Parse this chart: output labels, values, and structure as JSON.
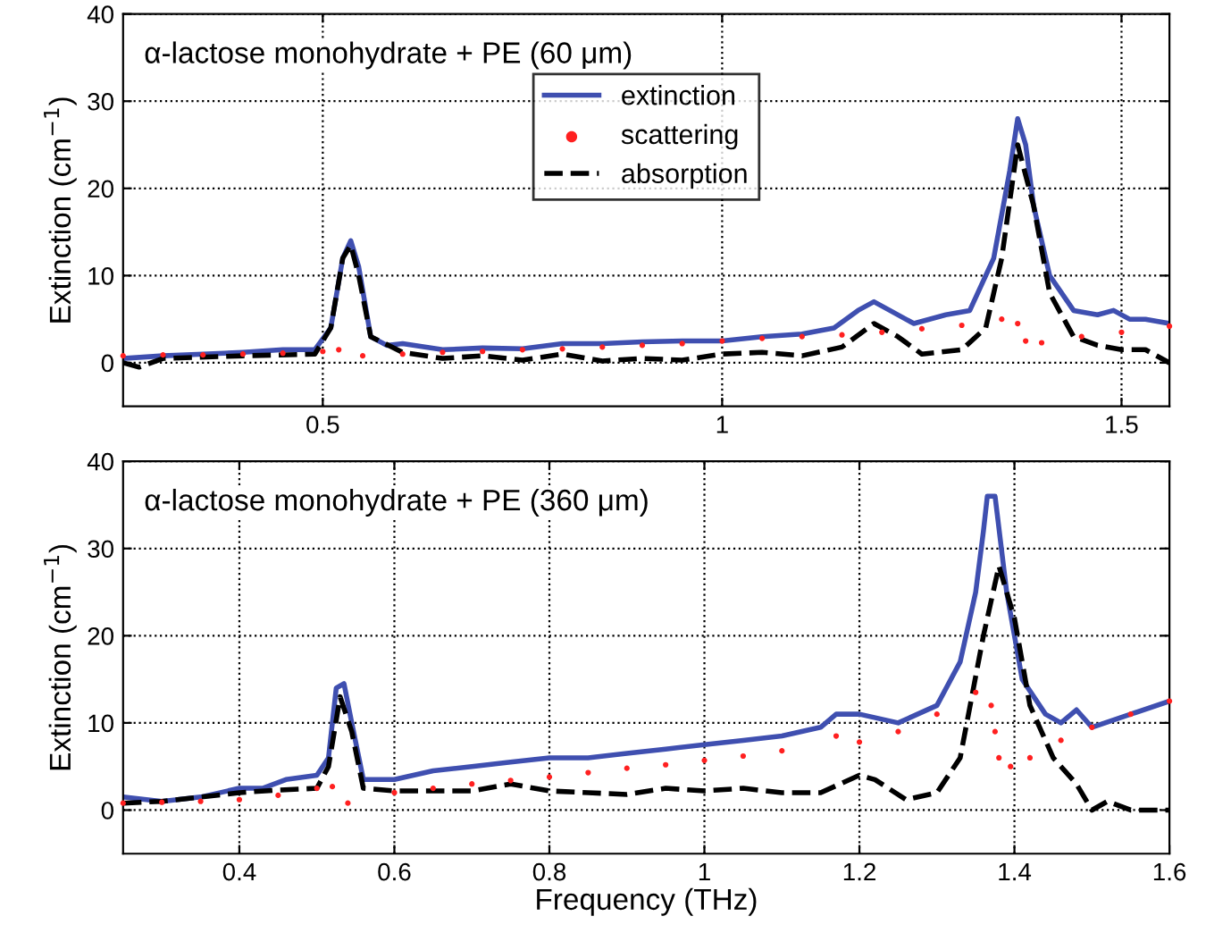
{
  "chart_data": [
    {
      "type": "line",
      "ylabel": "Extinction (cm$^{−1}$)",
      "annotations": [
        "α-lactose monohydrate + PE (60 μm)"
      ],
      "xlim": [
        0.25,
        1.56
      ],
      "xticks": [
        0.5,
        1,
        1.5
      ],
      "ylim": [
        -5,
        40
      ],
      "yticks": [
        0,
        10,
        20,
        30,
        40
      ],
      "grid": true,
      "legend": "top",
      "series": [
        {
          "name": "extinction",
          "color": "#3f4fb0",
          "line_style": "solid",
          "x": [
            0.25,
            0.3,
            0.35,
            0.4,
            0.45,
            0.49,
            0.51,
            0.525,
            0.535,
            0.545,
            0.56,
            0.58,
            0.6,
            0.65,
            0.7,
            0.75,
            0.8,
            0.85,
            0.9,
            0.95,
            1.0,
            1.05,
            1.1,
            1.14,
            1.17,
            1.19,
            1.21,
            1.24,
            1.28,
            1.31,
            1.34,
            1.36,
            1.37,
            1.38,
            1.39,
            1.41,
            1.44,
            1.47,
            1.49,
            1.51,
            1.53,
            1.56
          ],
          "values": [
            0.5,
            0.8,
            1.0,
            1.2,
            1.5,
            1.5,
            4,
            12,
            14,
            11,
            3,
            2,
            2.2,
            1.5,
            1.7,
            1.6,
            2.2,
            2.2,
            2.4,
            2.5,
            2.5,
            3.0,
            3.3,
            4,
            6,
            7,
            6,
            4.5,
            5.5,
            6,
            12,
            22,
            28,
            25,
            18,
            10,
            6,
            5.5,
            6,
            5,
            5,
            4.5
          ]
        },
        {
          "name": "scattering",
          "type": "scatter",
          "color": "#ff2020",
          "marker": "circle",
          "x": [
            0.25,
            0.3,
            0.35,
            0.4,
            0.45,
            0.5,
            0.52,
            0.55,
            0.6,
            0.65,
            0.7,
            0.75,
            0.8,
            0.85,
            0.9,
            0.95,
            1.0,
            1.05,
            1.1,
            1.15,
            1.2,
            1.25,
            1.3,
            1.35,
            1.37,
            1.38,
            1.4,
            1.45,
            1.5,
            1.56
          ],
          "values": [
            0.8,
            0.9,
            0.9,
            1.0,
            1.1,
            1.3,
            1.5,
            0.8,
            1.0,
            1.2,
            1.3,
            1.5,
            1.6,
            1.8,
            2.0,
            2.2,
            2.5,
            2.8,
            3.0,
            3.2,
            3.5,
            3.9,
            4.3,
            5.0,
            4.5,
            2.5,
            2.3,
            3.0,
            3.5,
            4.2
          ]
        },
        {
          "name": "absorption",
          "color": "#000000",
          "line_style": "dashed",
          "x": [
            0.25,
            0.27,
            0.3,
            0.4,
            0.49,
            0.51,
            0.525,
            0.535,
            0.545,
            0.56,
            0.6,
            0.65,
            0.7,
            0.75,
            0.8,
            0.85,
            0.9,
            0.95,
            1.0,
            1.05,
            1.1,
            1.15,
            1.19,
            1.22,
            1.25,
            1.3,
            1.33,
            1.35,
            1.37,
            1.39,
            1.41,
            1.44,
            1.47,
            1.5,
            1.53,
            1.56
          ],
          "values": [
            0,
            -0.5,
            0.5,
            0.8,
            1.0,
            4,
            12,
            13.5,
            10,
            3,
            1.2,
            0.5,
            0.8,
            0.3,
            1.0,
            0.2,
            0.5,
            0.3,
            1.0,
            1.2,
            0.8,
            1.8,
            4.5,
            3,
            1,
            1.5,
            4,
            12,
            25,
            18,
            8,
            3,
            2,
            1.5,
            1.5,
            0
          ]
        }
      ]
    },
    {
      "type": "line",
      "xlabel": "Frequency (THz)",
      "ylabel": "Extinction (cm$^{−1}$)",
      "annotations": [
        "α-lactose monohydrate + PE (360 μm)"
      ],
      "xlim": [
        0.25,
        1.6
      ],
      "xticks": [
        0.4,
        0.6,
        0.8,
        1,
        1.2,
        1.4,
        1.6
      ],
      "ylim": [
        -5,
        40
      ],
      "yticks": [
        0,
        10,
        20,
        30,
        40
      ],
      "grid": true,
      "series": [
        {
          "color": "#3f4fb0",
          "line_style": "solid",
          "x": [
            0.25,
            0.3,
            0.35,
            0.4,
            0.43,
            0.46,
            0.5,
            0.515,
            0.525,
            0.535,
            0.545,
            0.56,
            0.6,
            0.65,
            0.7,
            0.75,
            0.8,
            0.85,
            0.9,
            0.95,
            1.0,
            1.05,
            1.1,
            1.15,
            1.17,
            1.2,
            1.25,
            1.3,
            1.33,
            1.35,
            1.36,
            1.365,
            1.375,
            1.39,
            1.41,
            1.44,
            1.46,
            1.48,
            1.5,
            1.55,
            1.6
          ],
          "values": [
            1.5,
            1.0,
            1.5,
            2.5,
            2.5,
            3.5,
            4,
            6,
            14,
            14.5,
            10,
            3.5,
            3.5,
            4.5,
            5,
            5.5,
            6,
            6,
            6.5,
            7,
            7.5,
            8,
            8.5,
            9.5,
            11,
            11,
            10,
            12,
            17,
            25,
            32,
            36,
            36,
            25,
            15,
            11,
            10,
            11.5,
            9.5,
            11,
            12.5
          ]
        },
        {
          "type": "scatter",
          "color": "#ff2020",
          "marker": "circle",
          "x": [
            0.25,
            0.3,
            0.35,
            0.4,
            0.45,
            0.5,
            0.52,
            0.54,
            0.6,
            0.65,
            0.7,
            0.75,
            0.8,
            0.85,
            0.9,
            0.95,
            1.0,
            1.05,
            1.1,
            1.17,
            1.2,
            1.25,
            1.3,
            1.35,
            1.37,
            1.375,
            1.38,
            1.395,
            1.42,
            1.46,
            1.5,
            1.55,
            1.6
          ],
          "values": [
            0.8,
            0.9,
            1.0,
            1.2,
            1.7,
            2.5,
            2.7,
            0.8,
            2.0,
            2.5,
            3,
            3.4,
            3.8,
            4.3,
            4.8,
            5.2,
            5.7,
            6.2,
            6.8,
            8.5,
            7.8,
            9,
            11,
            13.5,
            12,
            9,
            6,
            5,
            6,
            8,
            9.5,
            11,
            12.5
          ]
        },
        {
          "color": "#000000",
          "line_style": "dashed",
          "x": [
            0.25,
            0.3,
            0.4,
            0.45,
            0.5,
            0.515,
            0.53,
            0.545,
            0.56,
            0.6,
            0.7,
            0.75,
            0.8,
            0.85,
            0.9,
            0.95,
            1.0,
            1.05,
            1.1,
            1.15,
            1.2,
            1.22,
            1.26,
            1.3,
            1.33,
            1.36,
            1.38,
            1.4,
            1.42,
            1.45,
            1.48,
            1.5,
            1.52,
            1.55,
            1.6
          ],
          "values": [
            0.8,
            1.0,
            2.0,
            2.3,
            2.5,
            5,
            13,
            9,
            2.5,
            2.2,
            2.2,
            3,
            2.2,
            2,
            1.8,
            2.5,
            2.2,
            2.5,
            2,
            2,
            4,
            3.5,
            1.2,
            2,
            6,
            20,
            28,
            22,
            12,
            6,
            3,
            0,
            1,
            0,
            0
          ]
        }
      ]
    }
  ]
}
